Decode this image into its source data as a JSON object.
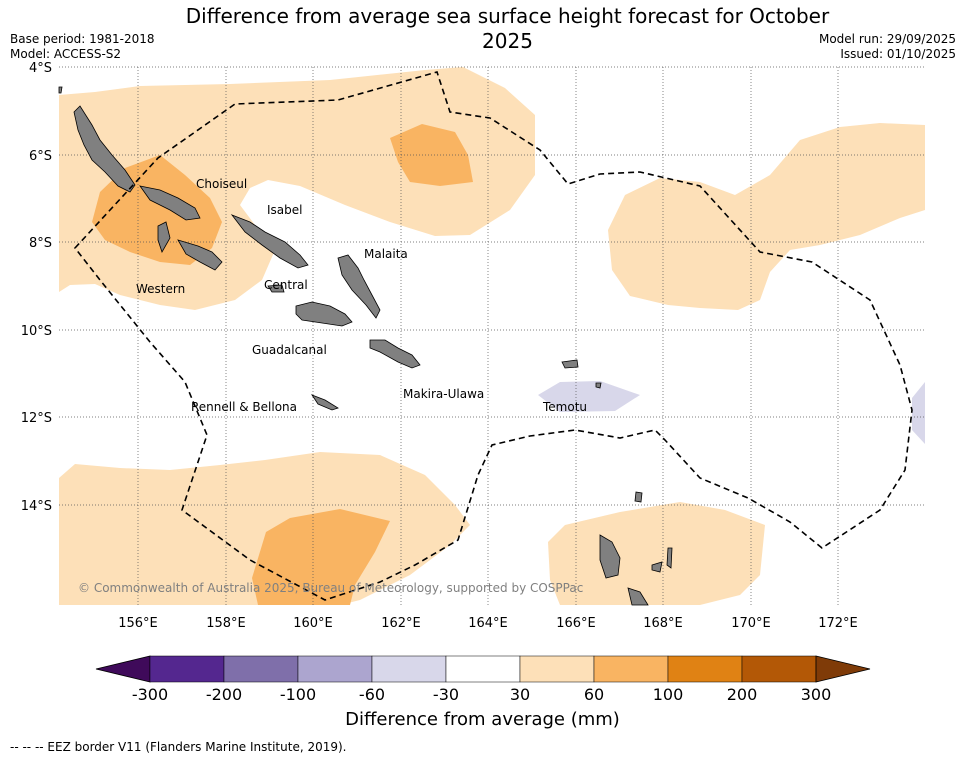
{
  "title": "Difference from average sea surface height forecast for October 2025",
  "meta": {
    "base_period": "Base period: 1981-2018",
    "model": "Model: ACCESS-S2",
    "model_run": "Model run: 29/09/2025",
    "issued": "Issued: 01/10/2025"
  },
  "map": {
    "lat_ticks": [
      "4°S",
      "6°S",
      "8°S",
      "10°S",
      "12°S",
      "14°S"
    ],
    "lon_ticks": [
      "156°E",
      "158°E",
      "160°E",
      "162°E",
      "164°E",
      "166°E",
      "168°E",
      "170°E",
      "172°E"
    ],
    "provinces": [
      "Choiseul",
      "Isabel",
      "Malaita",
      "Western",
      "Central",
      "Guadalcanal",
      "Makira-Ulawa",
      "Rennell & Bellona",
      "Temotu"
    ],
    "copyright": "© Commonwealth of Australia 2025, Bureau of Meteorology, supported by COSPPac"
  },
  "colorbar": {
    "title": "Difference from average (mm)",
    "labels": [
      "-300",
      "-200",
      "-100",
      "-60",
      "-30",
      "30",
      "60",
      "100",
      "200",
      "300"
    ],
    "colors": [
      "#3f0a5a",
      "#54278f",
      "#7f6faa",
      "#aca5cf",
      "#d8d7ea",
      "#ffffff",
      "#fde0b8",
      "#f9b462",
      "#e08214",
      "#b35806",
      "#7f3b08"
    ]
  },
  "legend": {
    "text": "--  --  -- EEZ border V11 (Flanders Marine Institute, 2019)."
  }
}
